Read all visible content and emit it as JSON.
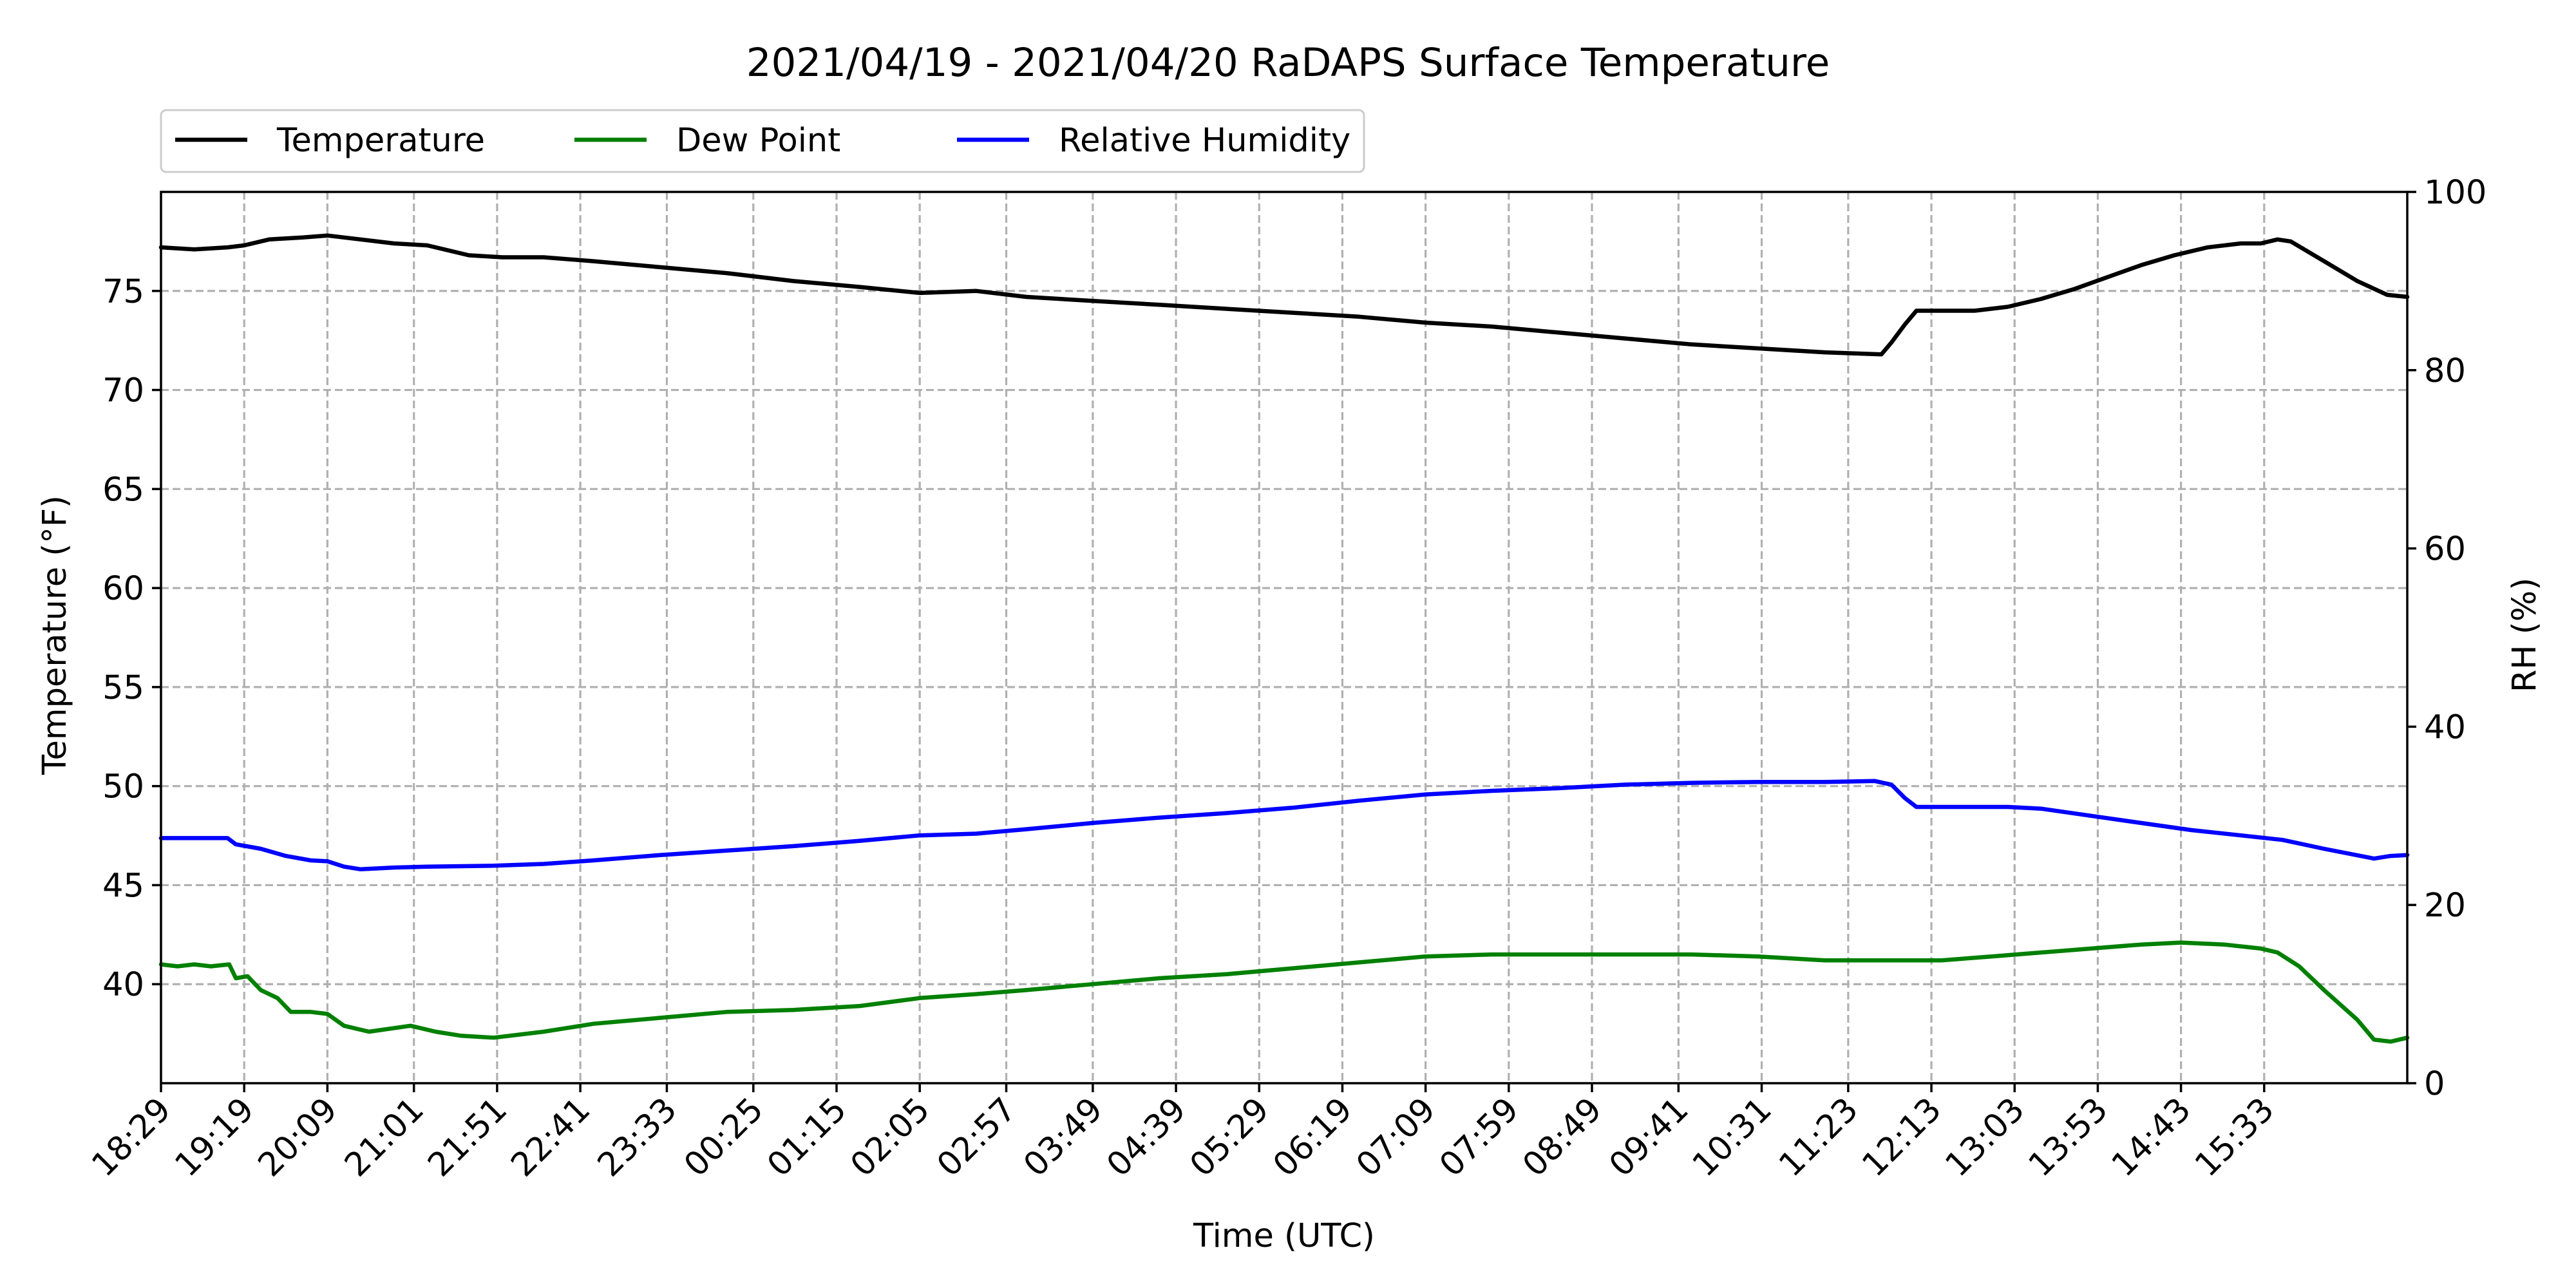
{
  "chart_data": {
    "type": "line",
    "title": "2021/04/19 - 2021/04/20 RaDAPS Surface Temperature",
    "xlabel": "Time (UTC)",
    "ylabel": "Temperature ($^\\circ$F)",
    "ylabel_display": "Temperature (°F)",
    "ylabel2": "RH (%)",
    "x_unit": "minutes since 18:29 UTC",
    "x_ticks": [
      {
        "x": 0,
        "label": "18:29"
      },
      {
        "x": 50,
        "label": "19:19"
      },
      {
        "x": 100,
        "label": "20:09"
      },
      {
        "x": 152,
        "label": "21:01"
      },
      {
        "x": 202,
        "label": "21:51"
      },
      {
        "x": 252,
        "label": "22:41"
      },
      {
        "x": 304,
        "label": "23:33"
      },
      {
        "x": 356,
        "label": "00:25"
      },
      {
        "x": 406,
        "label": "01:15"
      },
      {
        "x": 456,
        "label": "02:05"
      },
      {
        "x": 508,
        "label": "02:57"
      },
      {
        "x": 560,
        "label": "03:49"
      },
      {
        "x": 610,
        "label": "04:39"
      },
      {
        "x": 660,
        "label": "05:29"
      },
      {
        "x": 710,
        "label": "06:19"
      },
      {
        "x": 760,
        "label": "07:09"
      },
      {
        "x": 810,
        "label": "07:59"
      },
      {
        "x": 860,
        "label": "08:49"
      },
      {
        "x": 912,
        "label": "09:41"
      },
      {
        "x": 962,
        "label": "10:31"
      },
      {
        "x": 1014,
        "label": "11:23"
      },
      {
        "x": 1064,
        "label": "12:13"
      },
      {
        "x": 1114,
        "label": "13:03"
      },
      {
        "x": 1164,
        "label": "13:53"
      },
      {
        "x": 1214,
        "label": "14:43"
      },
      {
        "x": 1264,
        "label": "15:33"
      }
    ],
    "xlim": [
      0,
      1350
    ],
    "ylim": [
      35,
      80
    ],
    "y_ticks": [
      40,
      45,
      50,
      55,
      60,
      65,
      70,
      75
    ],
    "ylim2": [
      0,
      100
    ],
    "y2_ticks": [
      0,
      20,
      40,
      60,
      80,
      100
    ],
    "grid": true,
    "legend_position": "top-left, above plot",
    "series": [
      {
        "name": "Temperature",
        "axis": "left",
        "color": "#000000",
        "points": [
          [
            0,
            77.2
          ],
          [
            20,
            77.1
          ],
          [
            40,
            77.2
          ],
          [
            50,
            77.3
          ],
          [
            65,
            77.6
          ],
          [
            85,
            77.7
          ],
          [
            100,
            77.8
          ],
          [
            120,
            77.6
          ],
          [
            140,
            77.4
          ],
          [
            160,
            77.3
          ],
          [
            185,
            76.8
          ],
          [
            205,
            76.7
          ],
          [
            230,
            76.7
          ],
          [
            260,
            76.5
          ],
          [
            300,
            76.2
          ],
          [
            340,
            75.9
          ],
          [
            380,
            75.5
          ],
          [
            420,
            75.2
          ],
          [
            456,
            74.9
          ],
          [
            490,
            75.0
          ],
          [
            520,
            74.7
          ],
          [
            560,
            74.5
          ],
          [
            600,
            74.3
          ],
          [
            640,
            74.1
          ],
          [
            680,
            73.9
          ],
          [
            720,
            73.7
          ],
          [
            760,
            73.4
          ],
          [
            800,
            73.2
          ],
          [
            840,
            72.9
          ],
          [
            880,
            72.6
          ],
          [
            920,
            72.3
          ],
          [
            960,
            72.1
          ],
          [
            1000,
            71.9
          ],
          [
            1034,
            71.8
          ],
          [
            1040,
            72.4
          ],
          [
            1048,
            73.3
          ],
          [
            1055,
            74.0
          ],
          [
            1065,
            74.0
          ],
          [
            1090,
            74.0
          ],
          [
            1110,
            74.2
          ],
          [
            1130,
            74.6
          ],
          [
            1150,
            75.1
          ],
          [
            1170,
            75.7
          ],
          [
            1190,
            76.3
          ],
          [
            1210,
            76.8
          ],
          [
            1230,
            77.2
          ],
          [
            1250,
            77.4
          ],
          [
            1262,
            77.4
          ],
          [
            1272,
            77.6
          ],
          [
            1280,
            77.5
          ],
          [
            1300,
            76.5
          ],
          [
            1320,
            75.5
          ],
          [
            1338,
            74.8
          ],
          [
            1350,
            74.7
          ]
        ]
      },
      {
        "name": "Dew Point",
        "axis": "left",
        "color": "#008000",
        "points": [
          [
            0,
            41.0
          ],
          [
            10,
            40.9
          ],
          [
            20,
            41.0
          ],
          [
            30,
            40.9
          ],
          [
            41,
            41.0
          ],
          [
            45,
            40.3
          ],
          [
            52,
            40.4
          ],
          [
            60,
            39.7
          ],
          [
            70,
            39.3
          ],
          [
            78,
            38.6
          ],
          [
            90,
            38.6
          ],
          [
            100,
            38.5
          ],
          [
            110,
            37.9
          ],
          [
            125,
            37.6
          ],
          [
            150,
            37.9
          ],
          [
            165,
            37.6
          ],
          [
            180,
            37.4
          ],
          [
            200,
            37.3
          ],
          [
            230,
            37.6
          ],
          [
            260,
            38.0
          ],
          [
            300,
            38.3
          ],
          [
            340,
            38.6
          ],
          [
            380,
            38.7
          ],
          [
            420,
            38.9
          ],
          [
            456,
            39.3
          ],
          [
            490,
            39.5
          ],
          [
            520,
            39.7
          ],
          [
            560,
            40.0
          ],
          [
            600,
            40.3
          ],
          [
            640,
            40.5
          ],
          [
            680,
            40.8
          ],
          [
            720,
            41.1
          ],
          [
            760,
            41.4
          ],
          [
            800,
            41.5
          ],
          [
            840,
            41.5
          ],
          [
            880,
            41.5
          ],
          [
            920,
            41.5
          ],
          [
            960,
            41.4
          ],
          [
            1000,
            41.2
          ],
          [
            1040,
            41.2
          ],
          [
            1070,
            41.2
          ],
          [
            1100,
            41.4
          ],
          [
            1130,
            41.6
          ],
          [
            1160,
            41.8
          ],
          [
            1190,
            42.0
          ],
          [
            1214,
            42.1
          ],
          [
            1240,
            42.0
          ],
          [
            1262,
            41.8
          ],
          [
            1272,
            41.6
          ],
          [
            1285,
            40.9
          ],
          [
            1300,
            39.7
          ],
          [
            1320,
            38.2
          ],
          [
            1330,
            37.2
          ],
          [
            1340,
            37.1
          ],
          [
            1350,
            37.3
          ]
        ]
      },
      {
        "name": "Relative Humidity",
        "axis": "right",
        "color": "#0000ff",
        "points": [
          [
            0,
            27.5
          ],
          [
            20,
            27.5
          ],
          [
            40,
            27.5
          ],
          [
            45,
            26.8
          ],
          [
            60,
            26.3
          ],
          [
            75,
            25.5
          ],
          [
            90,
            25.0
          ],
          [
            100,
            24.9
          ],
          [
            110,
            24.3
          ],
          [
            120,
            24.0
          ],
          [
            140,
            24.2
          ],
          [
            160,
            24.3
          ],
          [
            200,
            24.4
          ],
          [
            230,
            24.6
          ],
          [
            260,
            25.0
          ],
          [
            300,
            25.6
          ],
          [
            340,
            26.1
          ],
          [
            380,
            26.6
          ],
          [
            420,
            27.2
          ],
          [
            456,
            27.8
          ],
          [
            490,
            28.0
          ],
          [
            520,
            28.5
          ],
          [
            560,
            29.2
          ],
          [
            600,
            29.8
          ],
          [
            640,
            30.3
          ],
          [
            680,
            30.9
          ],
          [
            720,
            31.7
          ],
          [
            760,
            32.4
          ],
          [
            800,
            32.8
          ],
          [
            840,
            33.1
          ],
          [
            880,
            33.5
          ],
          [
            920,
            33.7
          ],
          [
            960,
            33.8
          ],
          [
            1000,
            33.8
          ],
          [
            1030,
            33.9
          ],
          [
            1040,
            33.5
          ],
          [
            1048,
            32.0
          ],
          [
            1055,
            31.0
          ],
          [
            1080,
            31.0
          ],
          [
            1110,
            31.0
          ],
          [
            1130,
            30.8
          ],
          [
            1160,
            30.0
          ],
          [
            1190,
            29.2
          ],
          [
            1220,
            28.4
          ],
          [
            1250,
            27.8
          ],
          [
            1275,
            27.3
          ],
          [
            1300,
            26.3
          ],
          [
            1330,
            25.2
          ],
          [
            1340,
            25.5
          ],
          [
            1350,
            25.6
          ]
        ]
      }
    ]
  }
}
